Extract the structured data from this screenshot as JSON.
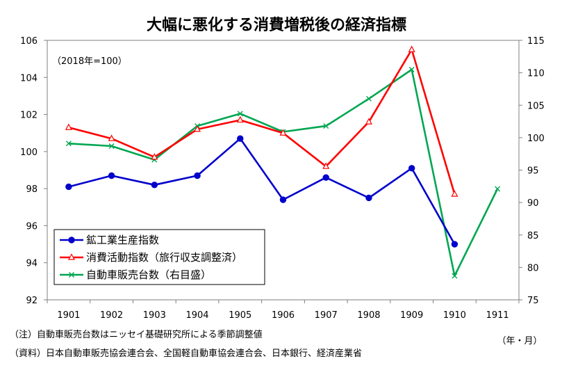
{
  "chart_data": {
    "type": "line",
    "title": "大幅に悪化する消費増税後の経済指標",
    "annotation": "（2018年=100）",
    "x_unit": "（年・月）",
    "categories": [
      "1901",
      "1902",
      "1903",
      "1904",
      "1905",
      "1906",
      "1907",
      "1908",
      "1909",
      "1910",
      "1911"
    ],
    "ylim_left": [
      92,
      106
    ],
    "yticks_left": [
      "92",
      "94",
      "96",
      "98",
      "100",
      "102",
      "104",
      "106"
    ],
    "ylim_right": [
      75,
      115
    ],
    "yticks_right": [
      "75",
      "80",
      "85",
      "90",
      "95",
      "100",
      "105",
      "110",
      "115"
    ],
    "series": [
      {
        "name": "鉱工業生産指数",
        "axis": "left",
        "color": "#0000CC",
        "marker": "circle",
        "values": [
          98.1,
          98.7,
          98.2,
          98.7,
          100.7,
          97.4,
          98.6,
          97.5,
          99.1,
          95.0,
          null
        ]
      },
      {
        "name": "消費活動指数（旅行収支調整済）",
        "axis": "left",
        "color": "#FF0000",
        "marker": "triangle",
        "values": [
          101.3,
          100.7,
          99.7,
          101.2,
          101.7,
          101.0,
          99.2,
          101.6,
          105.5,
          97.7,
          null
        ]
      },
      {
        "name": "自動車販売台数（右目盛）",
        "axis": "right",
        "color": "#00A651",
        "marker": "x",
        "values": [
          99.1,
          98.7,
          96.6,
          101.8,
          103.7,
          100.9,
          101.8,
          106.0,
          110.5,
          78.7,
          92.1
        ]
      }
    ],
    "grid": false,
    "legend_position": "bottom-left"
  },
  "notes": [
    "（注）自動車販売台数はニッセイ基礎研究所による季節調整値",
    "（資料）日本自動車販売協会連合会、全国軽自動車協会連合会、日本銀行、経済産業省"
  ]
}
